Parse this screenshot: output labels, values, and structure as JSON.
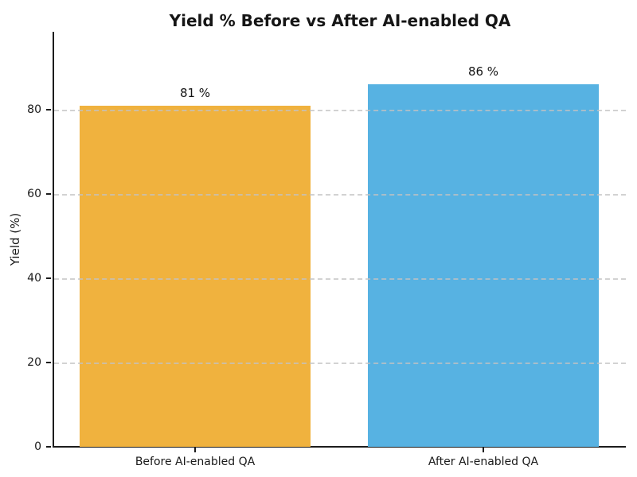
{
  "chart_data": {
    "type": "bar",
    "title": "Yield % Before vs After AI-enabled QA",
    "xlabel": "",
    "ylabel": "Yield (%)",
    "categories": [
      "Before AI-enabled QA",
      "After AI-enabled QA"
    ],
    "values": [
      81,
      86
    ],
    "value_labels": [
      "81 %",
      "86 %"
    ],
    "bar_colors": [
      "#F0B23E",
      "#57B2E2"
    ],
    "yticks": [
      0,
      20,
      40,
      60,
      80
    ],
    "ylim": [
      0,
      98.5
    ],
    "grid": "horizontal-dashed-over-bars",
    "legend": "none",
    "spines": "left-and-bottom-only"
  }
}
